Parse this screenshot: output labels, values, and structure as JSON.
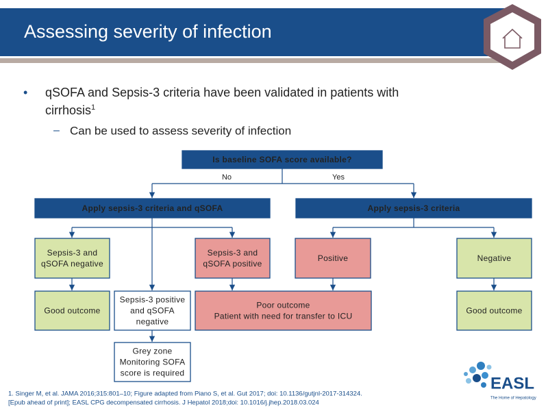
{
  "header": {
    "title": "Assessing severity of infection"
  },
  "bullet": {
    "lines": [
      "qSOFA and Sepsis-3 criteria have been validated in patients with",
      "cirrhosis"
    ],
    "superscript": "1",
    "subbullets": [
      "Can be used to assess severity of infection"
    ]
  },
  "flowchart": {
    "question": "Is baseline SOFA score available?",
    "edge_labels": [
      "No",
      "Yes"
    ],
    "nodes": [
      {
        "lines": [
          "Apply sepsis-3 criteria and qSOFA"
        ]
      },
      {
        "lines": [
          "Apply sepsis-3 criteria"
        ]
      },
      {
        "lines": [
          "Sepsis-3 and",
          "qSOFA negative"
        ]
      },
      {
        "lines": [
          "Sepsis-3 and",
          "qSOFA positive"
        ]
      },
      {
        "lines": [
          "Positive"
        ]
      },
      {
        "lines": [
          "Negative"
        ]
      },
      {
        "lines": [
          "Good outcome"
        ]
      },
      {
        "lines": [
          "Sepsis-3 positive",
          "and qSOFA",
          "negative"
        ]
      },
      {
        "lines": [
          "Poor outcome",
          "Patient with need for transfer to ICU"
        ]
      },
      {
        "lines": [
          "Good outcome"
        ]
      },
      {
        "lines": [
          "Grey zone",
          "Monitoring SOFA",
          "score is required"
        ]
      }
    ]
  },
  "footnotes": [
    "1. Singer M, et al. JAMA 2016;315:801–10; Figure adapted from Piano S, et al. Gut 2017; doi: 10.1136/gutjnl-2017-314324.",
    "[Epub ahead of print]; EASL CPG decompensated cirrhosis. J Hepatol 2018;doi: 10.1016/j.jhep.2018.03.024"
  ],
  "logo": {
    "name": "EASL",
    "tagline": "The Home of Hepatology"
  }
}
